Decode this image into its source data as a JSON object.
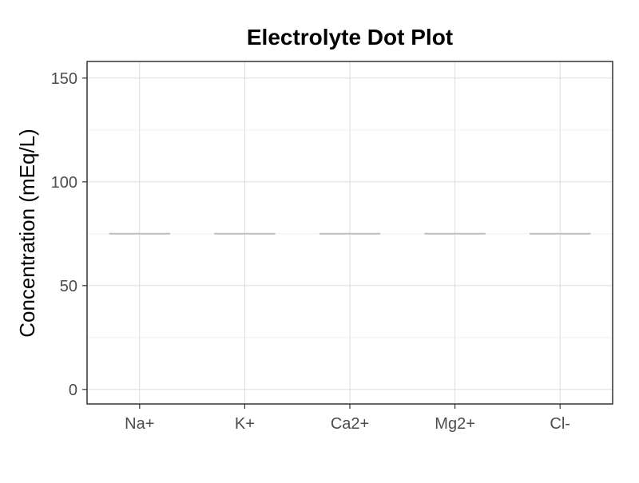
{
  "chart_data": {
    "type": "scatter",
    "title": "Electrolyte Dot Plot",
    "xlabel": "",
    "ylabel": "Concentration (mEq/L)",
    "categories": [
      "Na+",
      "K+",
      "Ca2+",
      "Mg2+",
      "Cl-"
    ],
    "y_ticks": [
      0,
      50,
      100,
      150
    ],
    "ylim": [
      -7,
      158
    ],
    "grid": true,
    "legend": "none",
    "median_lines": [
      {
        "category": "Na+",
        "value": 75
      },
      {
        "category": "K+",
        "value": 75
      },
      {
        "category": "Ca2+",
        "value": 75
      },
      {
        "category": "Mg2+",
        "value": 75
      },
      {
        "category": "Cl-",
        "value": 75
      }
    ],
    "colors": {
      "median_line": "#bdbdbd",
      "grid_major": "#dedede",
      "grid_minor": "#efefef",
      "panel_border": "#333333",
      "tick_label": "#4d4d4d"
    }
  }
}
